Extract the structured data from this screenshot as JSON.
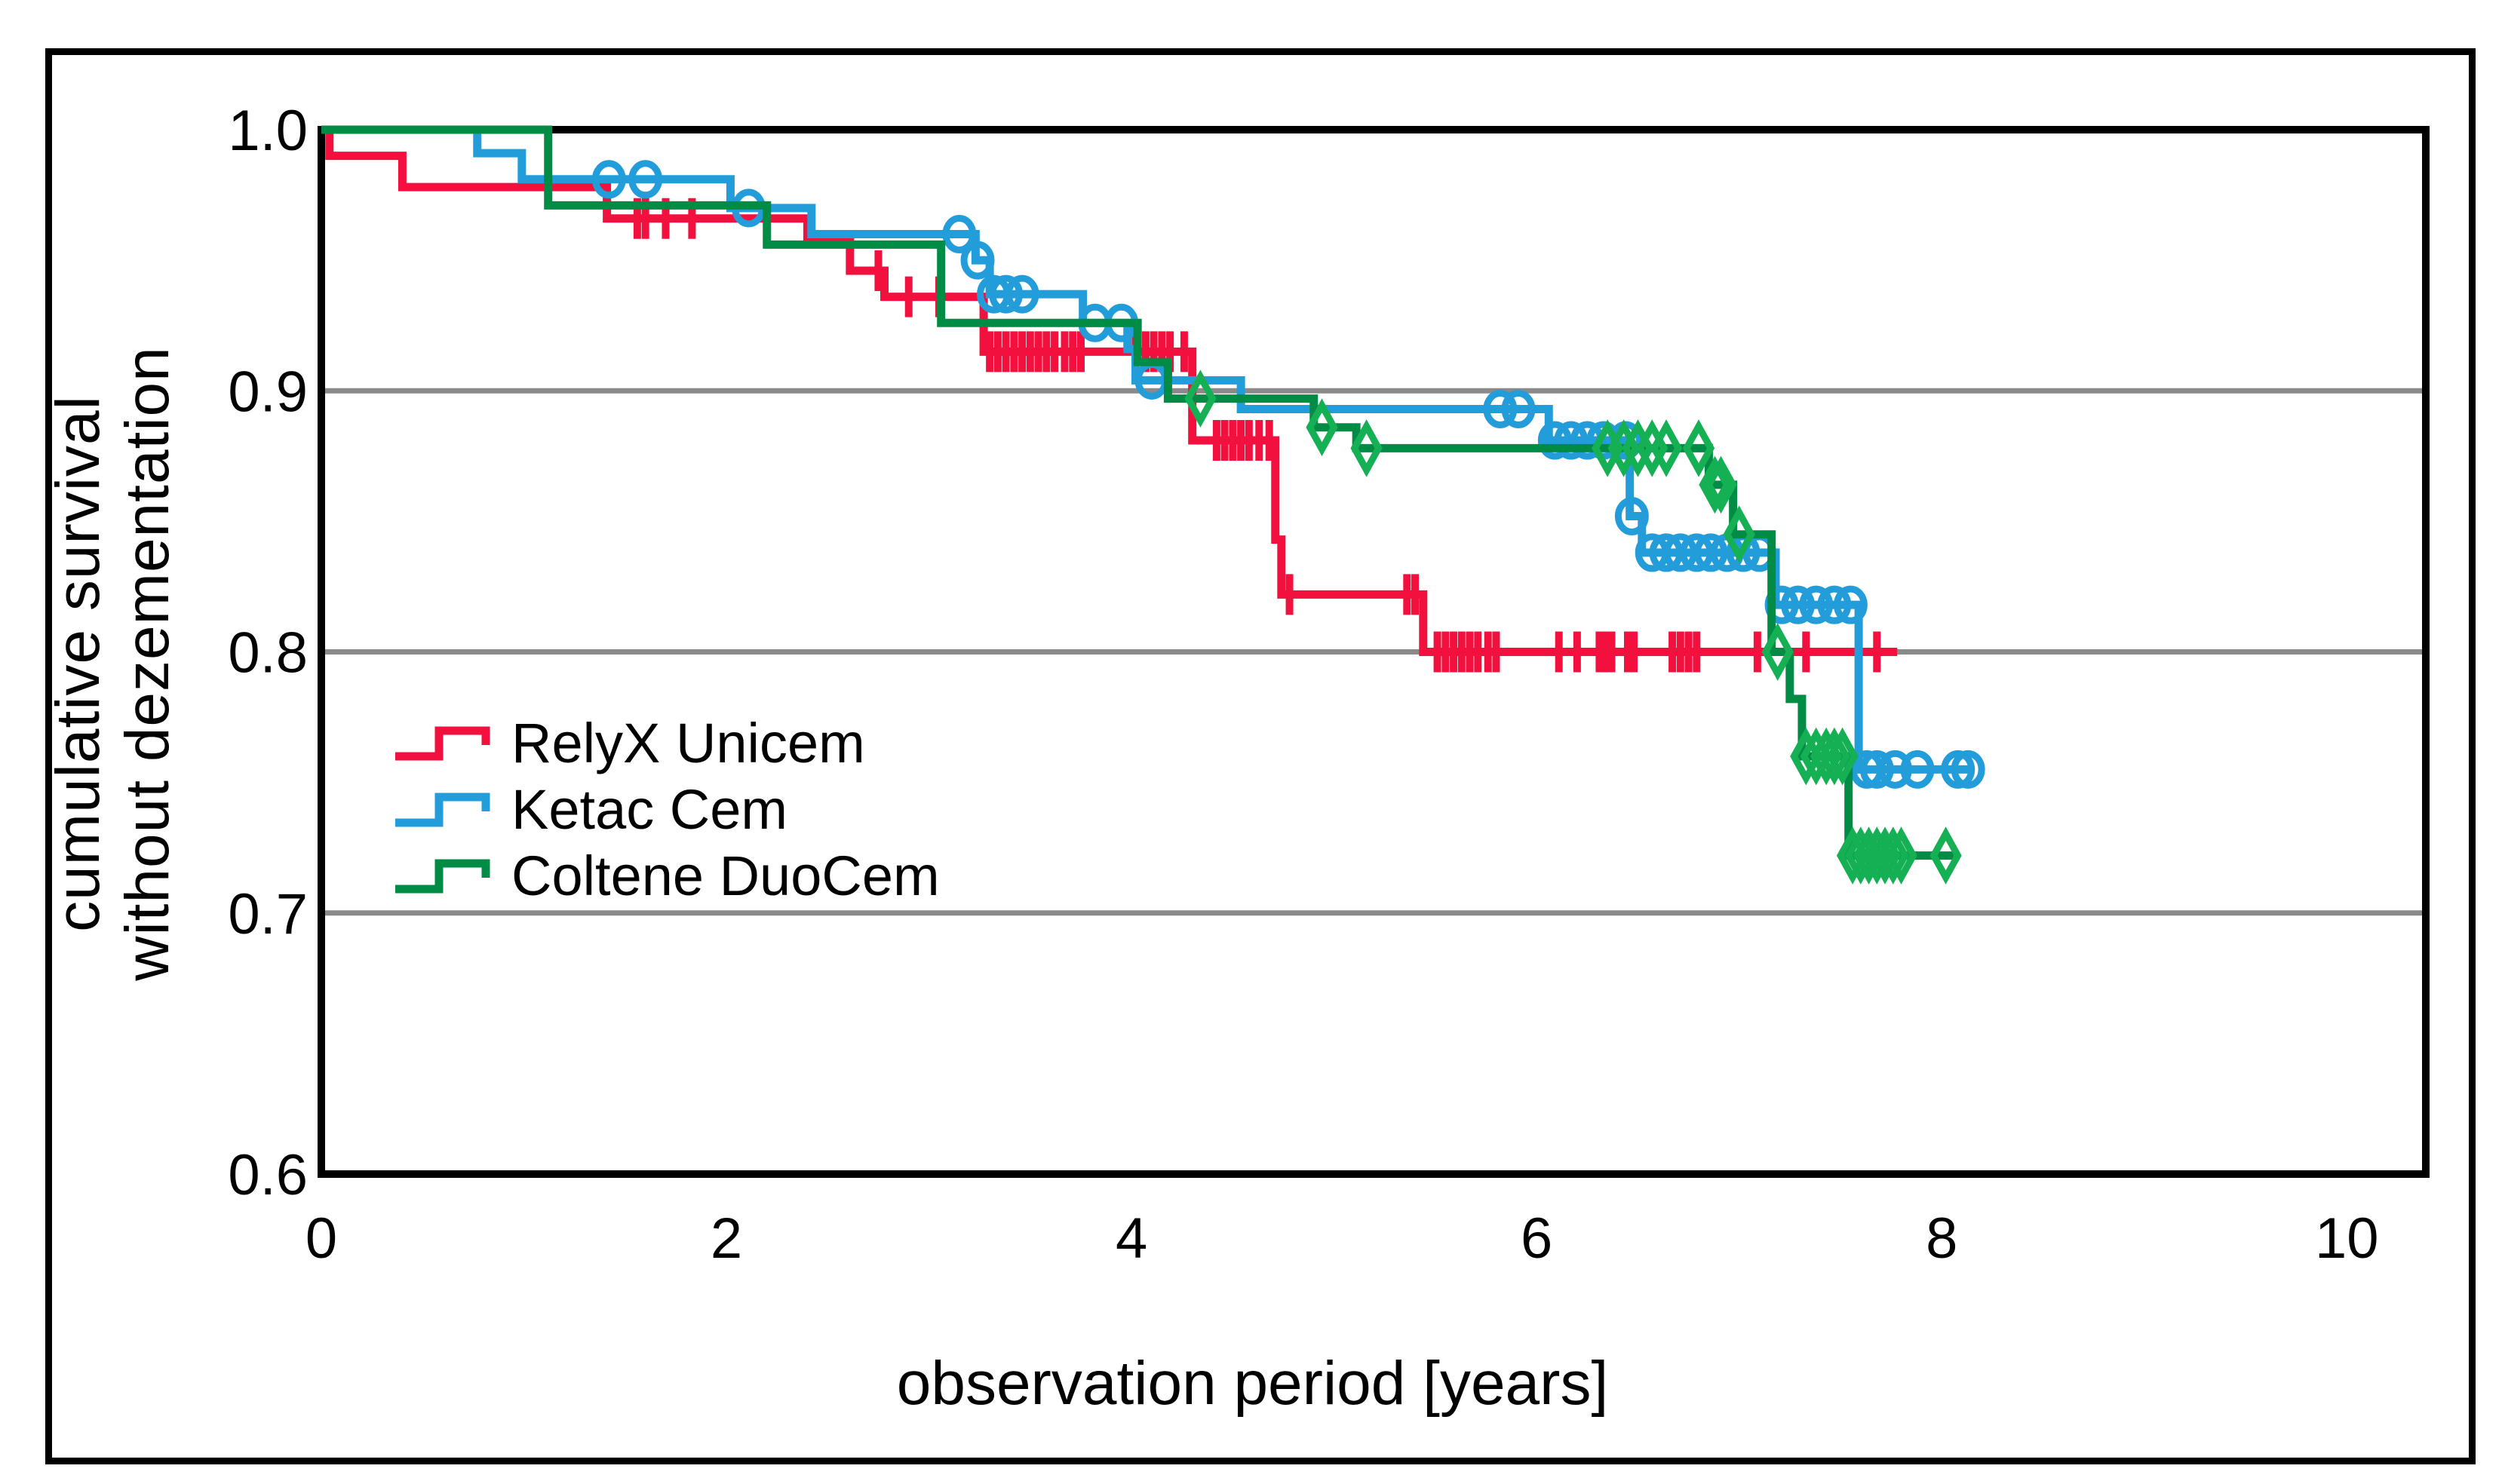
{
  "figure": {
    "background": "#ffffff",
    "border_color": "#000000"
  },
  "chart_data": {
    "type": "line",
    "subtype": "kaplan-meier-step",
    "title": "",
    "xlabel": "observation period [years]",
    "ylabel_lines": [
      "cumulative survival",
      "without dezementation"
    ],
    "xlim": [
      0,
      10.39
    ],
    "ylim": [
      0.6,
      1.0
    ],
    "x_ticks": [
      {
        "label": "0",
        "t": 0
      },
      {
        "label": "2",
        "t": 2
      },
      {
        "label": "4",
        "t": 4
      },
      {
        "label": "6",
        "t": 6
      },
      {
        "label": "8",
        "t": 8
      },
      {
        "label": "10",
        "t": 10
      }
    ],
    "y_ticks": [
      {
        "label": "1.0",
        "v": 1.0
      },
      {
        "label": "0.9",
        "v": 0.9
      },
      {
        "label": "0.8",
        "v": 0.8
      },
      {
        "label": "0.7",
        "v": 0.7
      },
      {
        "label": "0.6",
        "v": 0.6
      }
    ],
    "y_gridlines": [
      0.9,
      0.8,
      0.7
    ],
    "grid_color": "#8a8a8a",
    "axis_color": "#000000",
    "legend_position": "inside-left",
    "series": [
      {
        "name": "RelyX Unicem",
        "color": "#f2103e",
        "marker": "tick",
        "marker_color": "#f2103e",
        "start": [
          0,
          1.0
        ],
        "steps": [
          [
            0.04,
            0.99
          ],
          [
            0.4,
            0.978
          ],
          [
            1.41,
            0.966
          ],
          [
            2.4,
            0.957
          ],
          [
            2.61,
            0.946
          ],
          [
            2.78,
            0.936
          ],
          [
            3.27,
            0.915
          ],
          [
            4.3,
            0.881
          ],
          [
            4.71,
            0.843
          ],
          [
            4.74,
            0.822
          ],
          [
            5.44,
            0.8
          ]
        ],
        "end_t": 7.78,
        "censors": [
          [
            1.56,
            0.966
          ],
          [
            1.6,
            0.966
          ],
          [
            1.7,
            0.966
          ],
          [
            1.83,
            0.966
          ],
          [
            2.75,
            0.946
          ],
          [
            2.9,
            0.936
          ],
          [
            3.05,
            0.936
          ],
          [
            3.3,
            0.915
          ],
          [
            3.34,
            0.915
          ],
          [
            3.38,
            0.915
          ],
          [
            3.42,
            0.915
          ],
          [
            3.46,
            0.915
          ],
          [
            3.5,
            0.915
          ],
          [
            3.54,
            0.915
          ],
          [
            3.58,
            0.915
          ],
          [
            3.62,
            0.915
          ],
          [
            3.67,
            0.915
          ],
          [
            3.71,
            0.915
          ],
          [
            3.75,
            0.915
          ],
          [
            4.02,
            0.915
          ],
          [
            4.07,
            0.915
          ],
          [
            4.11,
            0.915
          ],
          [
            4.15,
            0.915
          ],
          [
            4.19,
            0.915
          ],
          [
            4.26,
            0.915
          ],
          [
            4.42,
            0.881
          ],
          [
            4.46,
            0.881
          ],
          [
            4.5,
            0.881
          ],
          [
            4.54,
            0.881
          ],
          [
            4.58,
            0.881
          ],
          [
            4.63,
            0.881
          ],
          [
            4.68,
            0.881
          ],
          [
            4.78,
            0.822
          ],
          [
            5.36,
            0.822
          ],
          [
            5.4,
            0.822
          ],
          [
            5.51,
            0.8
          ],
          [
            5.55,
            0.8
          ],
          [
            5.59,
            0.8
          ],
          [
            5.63,
            0.8
          ],
          [
            5.67,
            0.8
          ],
          [
            5.71,
            0.8
          ],
          [
            5.76,
            0.8
          ],
          [
            5.8,
            0.8
          ],
          [
            6.11,
            0.8
          ],
          [
            6.2,
            0.8
          ],
          [
            6.31,
            0.8
          ],
          [
            6.34,
            0.8
          ],
          [
            6.37,
            0.8
          ],
          [
            6.45,
            0.8
          ],
          [
            6.48,
            0.8
          ],
          [
            6.67,
            0.8
          ],
          [
            6.71,
            0.8
          ],
          [
            6.75,
            0.8
          ],
          [
            6.79,
            0.8
          ],
          [
            7.09,
            0.8
          ],
          [
            7.33,
            0.8
          ],
          [
            7.68,
            0.8
          ]
        ]
      },
      {
        "name": "Ketac Cem",
        "color": "#239dda",
        "marker": "circle",
        "marker_color": "#239dda",
        "start": [
          0,
          1.0
        ],
        "steps": [
          [
            0.77,
            0.991
          ],
          [
            0.99,
            0.981
          ],
          [
            2.02,
            0.97
          ],
          [
            2.42,
            0.96
          ],
          [
            3.23,
            0.95
          ],
          [
            3.3,
            0.937
          ],
          [
            3.76,
            0.926
          ],
          [
            3.98,
            0.916
          ],
          [
            4.02,
            0.904
          ],
          [
            4.54,
            0.893
          ],
          [
            6.06,
            0.881
          ],
          [
            6.46,
            0.852
          ],
          [
            6.52,
            0.838
          ],
          [
            7.18,
            0.818
          ],
          [
            7.59,
            0.755
          ]
        ],
        "end_t": 8.16,
        "censors": [
          [
            1.42,
            0.981
          ],
          [
            1.6,
            0.981
          ],
          [
            2.11,
            0.97
          ],
          [
            3.15,
            0.96
          ],
          [
            3.24,
            0.95
          ],
          [
            3.32,
            0.937
          ],
          [
            3.38,
            0.937
          ],
          [
            3.46,
            0.937
          ],
          [
            3.82,
            0.926
          ],
          [
            3.95,
            0.926
          ],
          [
            4.1,
            0.904
          ],
          [
            5.82,
            0.893
          ],
          [
            5.91,
            0.893
          ],
          [
            6.09,
            0.881
          ],
          [
            6.17,
            0.881
          ],
          [
            6.25,
            0.881
          ],
          [
            6.33,
            0.881
          ],
          [
            6.44,
            0.881
          ],
          [
            6.47,
            0.852
          ],
          [
            6.57,
            0.838
          ],
          [
            6.64,
            0.838
          ],
          [
            6.71,
            0.838
          ],
          [
            6.79,
            0.838
          ],
          [
            6.86,
            0.838
          ],
          [
            6.94,
            0.838
          ],
          [
            7.02,
            0.838
          ],
          [
            7.1,
            0.838
          ],
          [
            7.21,
            0.818
          ],
          [
            7.29,
            0.818
          ],
          [
            7.38,
            0.818
          ],
          [
            7.47,
            0.818
          ],
          [
            7.55,
            0.818
          ],
          [
            7.63,
            0.755
          ],
          [
            7.68,
            0.755
          ],
          [
            7.77,
            0.755
          ],
          [
            7.88,
            0.755
          ],
          [
            8.08,
            0.755
          ],
          [
            8.13,
            0.755
          ]
        ]
      },
      {
        "name": "Coltene DuoCem",
        "color": "#008c44",
        "marker": "diamond",
        "marker_color": "#15b054",
        "start": [
          0,
          1.0
        ],
        "steps": [
          [
            1.12,
            0.971
          ],
          [
            2.2,
            0.956
          ],
          [
            3.06,
            0.926
          ],
          [
            4.03,
            0.911
          ],
          [
            4.18,
            0.897
          ],
          [
            4.9,
            0.886
          ],
          [
            5.11,
            0.878
          ],
          [
            6.85,
            0.864
          ],
          [
            6.97,
            0.845
          ],
          [
            7.16,
            0.8
          ],
          [
            7.25,
            0.782
          ],
          [
            7.31,
            0.76
          ],
          [
            7.54,
            0.722
          ]
        ],
        "end_t": 8.06,
        "censors": [
          [
            4.34,
            0.897
          ],
          [
            4.94,
            0.886
          ],
          [
            5.16,
            0.878
          ],
          [
            6.35,
            0.878
          ],
          [
            6.43,
            0.878
          ],
          [
            6.5,
            0.878
          ],
          [
            6.57,
            0.878
          ],
          [
            6.64,
            0.878
          ],
          [
            6.8,
            0.878
          ],
          [
            6.88,
            0.864
          ],
          [
            6.91,
            0.864
          ],
          [
            7.0,
            0.845
          ],
          [
            7.19,
            0.8
          ],
          [
            7.33,
            0.76
          ],
          [
            7.38,
            0.76
          ],
          [
            7.43,
            0.76
          ],
          [
            7.47,
            0.76
          ],
          [
            7.51,
            0.76
          ],
          [
            7.56,
            0.722
          ],
          [
            7.6,
            0.722
          ],
          [
            7.64,
            0.722
          ],
          [
            7.68,
            0.722
          ],
          [
            7.72,
            0.722
          ],
          [
            7.76,
            0.722
          ],
          [
            7.8,
            0.722
          ],
          [
            8.02,
            0.722
          ]
        ]
      }
    ]
  }
}
